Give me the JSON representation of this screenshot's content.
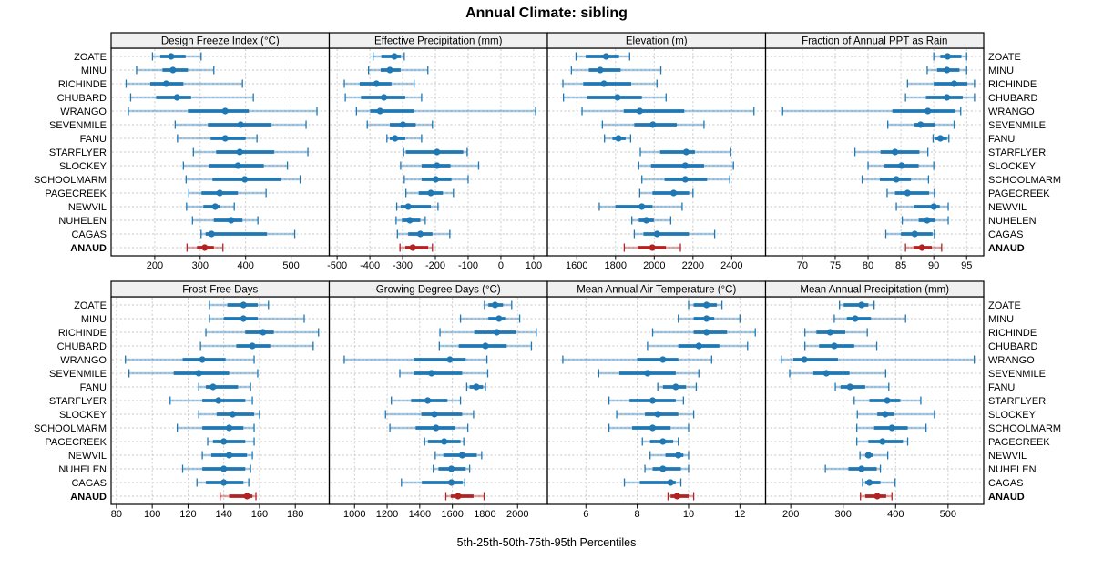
{
  "title": "Annual Climate: sibling",
  "caption": "5th-25th-50th-75th-95th Percentiles",
  "colors": {
    "series": "#1f77b4",
    "highlight": "#b22222",
    "grid": "#c6c6c6",
    "header_bg": "#f0f0f0",
    "border": "#000000"
  },
  "chart_data": {
    "type": "dotplot-percentiles",
    "percentiles": [
      5,
      25,
      50,
      75,
      95
    ],
    "legend": "5th-25th-50th-75th-95th Percentiles",
    "sites": [
      "ZOATE",
      "MINU",
      "RICHINDE",
      "CHUBARD",
      "WRANGO",
      "SEVENMILE",
      "FANU",
      "STARFLYER",
      "SLOCKEY",
      "SCHOOLMARM",
      "PAGECREEK",
      "NEWVIL",
      "NUHELEN",
      "CAGAS",
      "ANAUD"
    ],
    "highlight_site": "ANAUD",
    "panels": [
      {
        "title": "Design Freeze Index (°C)",
        "xlim": [
          104,
          584
        ],
        "ticks": [
          200,
          300,
          400,
          500
        ],
        "series": [
          [
            195,
            212,
            236,
            268,
            302
          ],
          [
            160,
            217,
            240,
            273,
            330
          ],
          [
            137,
            190,
            225,
            263,
            393
          ],
          [
            147,
            203,
            249,
            280,
            417
          ],
          [
            142,
            273,
            355,
            407,
            557
          ],
          [
            245,
            317,
            389,
            457,
            533
          ],
          [
            250,
            323,
            355,
            400,
            425
          ],
          [
            285,
            335,
            387,
            463,
            537
          ],
          [
            263,
            320,
            383,
            440,
            492
          ],
          [
            269,
            327,
            398,
            477,
            520
          ],
          [
            275,
            303,
            343,
            383,
            445
          ],
          [
            270,
            307,
            333,
            343,
            375
          ],
          [
            283,
            330,
            368,
            393,
            427
          ],
          [
            302,
            312,
            325,
            447,
            508
          ],
          [
            271,
            293,
            310,
            330,
            350
          ]
        ]
      },
      {
        "title": "Effective Precipitation (mm)",
        "xlim": [
          -524,
          142
        ],
        "ticks": [
          -500,
          -400,
          -300,
          -200,
          -100,
          0,
          100
        ],
        "series": [
          [
            -390,
            -365,
            -325,
            -305,
            -295
          ],
          [
            -404,
            -367,
            -339,
            -306,
            -223
          ],
          [
            -478,
            -431,
            -380,
            -334,
            -265
          ],
          [
            -475,
            -427,
            -357,
            -292,
            -242
          ],
          [
            -441,
            -399,
            -369,
            -265,
            106
          ],
          [
            -408,
            -339,
            -299,
            -260,
            -209
          ],
          [
            -348,
            -339,
            -323,
            -292,
            -242
          ],
          [
            -297,
            -290,
            -195,
            -115,
            -103
          ],
          [
            -306,
            -242,
            -195,
            -154,
            -68
          ],
          [
            -295,
            -242,
            -199,
            -151,
            -100
          ],
          [
            -290,
            -251,
            -214,
            -177,
            -145
          ],
          [
            -318,
            -306,
            -283,
            -214,
            -192
          ],
          [
            -320,
            -302,
            -278,
            -246,
            -231
          ],
          [
            -316,
            -283,
            -246,
            -209,
            -156
          ],
          [
            -308,
            -292,
            -269,
            -222,
            -209
          ]
        ]
      },
      {
        "title": "Elevation (m)",
        "xlim": [
          1448,
          2575
        ],
        "ticks": [
          1600,
          1800,
          2000,
          2200,
          2400
        ],
        "series": [
          [
            1596,
            1646,
            1751,
            1818,
            1873
          ],
          [
            1572,
            1662,
            1721,
            1826,
            2034
          ],
          [
            1528,
            1633,
            1740,
            1881,
            2014
          ],
          [
            1531,
            1654,
            1810,
            1936,
            2061
          ],
          [
            1627,
            1842,
            1925,
            2155,
            2515
          ],
          [
            1732,
            1897,
            1993,
            2116,
            2257
          ],
          [
            1743,
            1784,
            1815,
            1852,
            1878
          ],
          [
            1928,
            2030,
            2165,
            2210,
            2395
          ],
          [
            1920,
            1983,
            2160,
            2257,
            2409
          ],
          [
            1936,
            2053,
            2160,
            2273,
            2390
          ],
          [
            1925,
            1991,
            2100,
            2180,
            2200
          ],
          [
            1716,
            1799,
            1936,
            1991,
            2144
          ],
          [
            1884,
            1920,
            1959,
            1998,
            2085
          ],
          [
            1897,
            1944,
            2014,
            2179,
            2312
          ],
          [
            1845,
            1915,
            1990,
            2060,
            2135
          ]
        ]
      },
      {
        "title": "Fraction of Annual PPT as Rain",
        "xlim": [
          64.4,
          97.6
        ],
        "ticks": [
          70,
          75,
          80,
          85,
          90,
          95
        ],
        "series": [
          [
            90,
            91,
            92.1,
            94.2,
            95
          ],
          [
            89,
            90.5,
            92,
            93.9,
            95
          ],
          [
            86,
            90,
            93.1,
            95.1,
            96.2
          ],
          [
            85.7,
            88.8,
            92,
            94.4,
            96.2
          ],
          [
            67,
            83.7,
            89.1,
            93.2,
            94.1
          ],
          [
            83,
            87,
            88,
            90.2,
            93.1
          ],
          [
            89.9,
            90.2,
            91,
            92,
            92.3
          ],
          [
            78,
            81.9,
            84.1,
            87.8,
            89.1
          ],
          [
            80,
            82.5,
            85.1,
            87.7,
            90
          ],
          [
            79.1,
            81.8,
            84.3,
            86.5,
            89.2
          ],
          [
            82.9,
            84.1,
            86,
            89.3,
            90.1
          ],
          [
            84.3,
            87,
            90,
            90.9,
            92.2
          ],
          [
            85.2,
            87.7,
            89,
            90.2,
            92.2
          ],
          [
            82.7,
            85,
            87.1,
            89.8,
            90.1
          ],
          [
            85.7,
            86.9,
            88.2,
            89.7,
            91.2
          ]
        ]
      },
      {
        "title": "Frost-Free Days",
        "xlim": [
          77,
          199
        ],
        "ticks": [
          80,
          100,
          120,
          140,
          160,
          180
        ],
        "series": [
          [
            132,
            142,
            151,
            159,
            165
          ],
          [
            132,
            140,
            151,
            159,
            185
          ],
          [
            130,
            152,
            162,
            168,
            193
          ],
          [
            127,
            147,
            156,
            166,
            190
          ],
          [
            85,
            117,
            128,
            141,
            157
          ],
          [
            87,
            112,
            126,
            143,
            159
          ],
          [
            126,
            130,
            134,
            148,
            155
          ],
          [
            110,
            128,
            137,
            152,
            156
          ],
          [
            126,
            136,
            145,
            157,
            160
          ],
          [
            114,
            128,
            143,
            151,
            157
          ],
          [
            131,
            134,
            140,
            152,
            157
          ],
          [
            128,
            133,
            143,
            153,
            156
          ],
          [
            117,
            128,
            140,
            152,
            155
          ],
          [
            125,
            130,
            140,
            151,
            154
          ],
          [
            138,
            143,
            153,
            156,
            158
          ]
        ]
      },
      {
        "title": "Growing Degree Days (°C)",
        "xlim": [
          845,
          2183
        ],
        "ticks": [
          1000,
          1200,
          1400,
          1600,
          1800,
          2000
        ],
        "series": [
          [
            1797,
            1821,
            1862,
            1911,
            1964
          ],
          [
            1650,
            1821,
            1886,
            1924,
            2013
          ],
          [
            1524,
            1734,
            1873,
            1989,
            2115
          ],
          [
            1520,
            1639,
            1803,
            1933,
            2085
          ],
          [
            937,
            1362,
            1585,
            1682,
            1812
          ],
          [
            1278,
            1362,
            1472,
            1660,
            1817
          ],
          [
            1688,
            1706,
            1747,
            1788,
            1803
          ],
          [
            1226,
            1347,
            1449,
            1570,
            1650
          ],
          [
            1190,
            1410,
            1490,
            1660,
            1730
          ],
          [
            1217,
            1375,
            1500,
            1617,
            1695
          ],
          [
            1430,
            1450,
            1550,
            1650,
            1670
          ],
          [
            1495,
            1545,
            1660,
            1750,
            1780
          ],
          [
            1483,
            1515,
            1594,
            1682,
            1706
          ],
          [
            1288,
            1413,
            1594,
            1663,
            1676
          ],
          [
            1560,
            1590,
            1635,
            1730,
            1795
          ]
        ]
      },
      {
        "title": "Mean Annual Air Temperature (°C)",
        "xlim": [
          4.5,
          13.0
        ],
        "ticks": [
          6,
          8,
          10,
          12
        ],
        "series": [
          [
            10,
            10.2,
            10.7,
            11.1,
            11.3
          ],
          [
            9.6,
            10.2,
            10.7,
            11,
            12
          ],
          [
            8.6,
            10.2,
            10.7,
            11.5,
            12.6
          ],
          [
            8.4,
            9.6,
            10.4,
            11.2,
            12.3
          ],
          [
            5.1,
            8,
            9,
            9.6,
            10.9
          ],
          [
            6.5,
            7.3,
            8.4,
            9.5,
            10.4
          ],
          [
            8.8,
            9,
            9.5,
            9.9,
            10.3
          ],
          [
            6.9,
            7.7,
            8.6,
            9.5,
            9.8
          ],
          [
            7.2,
            8.3,
            8.8,
            9.6,
            10.2
          ],
          [
            6.9,
            7.8,
            8.6,
            9.3,
            10
          ],
          [
            8.2,
            8.5,
            9,
            9.4,
            9.6
          ],
          [
            8.5,
            9.1,
            9.6,
            9.8,
            10
          ],
          [
            8.3,
            8.6,
            9,
            9.7,
            10
          ],
          [
            7.5,
            8.1,
            9.3,
            9.5,
            9.7
          ],
          [
            9.2,
            9.3,
            9.55,
            10,
            10.2
          ]
        ]
      },
      {
        "title": "Mean Annual Precipitation (mm)",
        "xlim": [
          152,
          568
        ],
        "ticks": [
          200,
          300,
          400,
          500
        ],
        "series": [
          [
            293,
            301,
            335,
            348,
            359
          ],
          [
            283,
            307,
            323,
            353,
            419
          ],
          [
            227,
            249,
            275,
            304,
            346
          ],
          [
            227,
            254,
            283,
            321,
            364
          ],
          [
            182,
            205,
            226,
            290,
            550
          ],
          [
            198,
            243,
            268,
            312,
            381
          ],
          [
            285,
            295,
            313,
            342,
            387
          ],
          [
            321,
            350,
            384,
            409,
            448
          ],
          [
            327,
            365,
            380,
            397,
            474
          ],
          [
            326,
            359,
            393,
            423,
            458
          ],
          [
            326,
            348,
            375,
            414,
            423
          ],
          [
            332,
            342,
            348,
            356,
            385
          ],
          [
            266,
            310,
            335,
            364,
            371
          ],
          [
            337,
            342,
            350,
            371,
            399
          ],
          [
            333,
            342,
            365,
            382,
            393
          ]
        ]
      }
    ]
  }
}
